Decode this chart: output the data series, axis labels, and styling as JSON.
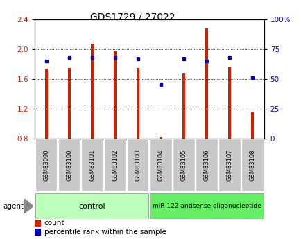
{
  "title": "GDS1729 / 27022",
  "categories": [
    "GSM83090",
    "GSM83100",
    "GSM83101",
    "GSM83102",
    "GSM83103",
    "GSM83104",
    "GSM83105",
    "GSM83106",
    "GSM83107",
    "GSM83108"
  ],
  "red_values": [
    1.74,
    1.75,
    2.07,
    1.97,
    1.75,
    0.82,
    1.67,
    2.28,
    1.77,
    1.15
  ],
  "blue_values": [
    65,
    68,
    68,
    68,
    67,
    45,
    67,
    65,
    68,
    51
  ],
  "bar_bottom": 0.8,
  "ylim_left": [
    0.8,
    2.4
  ],
  "ylim_right": [
    0,
    100
  ],
  "yticks_left": [
    0.8,
    1.2,
    1.6,
    2.0,
    2.4
  ],
  "yticks_right": [
    0,
    25,
    50,
    75,
    100
  ],
  "ytick_labels_right": [
    "0",
    "25",
    "50",
    "75",
    "100%"
  ],
  "red_color": "#cc2200",
  "blue_color": "#0000bb",
  "bar_bg_color": "#c8c8c8",
  "control_label": "control",
  "treatment_label": "miR-122 antisense oligonucleotide",
  "agent_label": "agent",
  "legend_count": "count",
  "legend_pct": "percentile rank within the sample",
  "control_bg": "#bbffbb",
  "treatment_bg": "#66ee66",
  "xlabel_bg": "#cccccc",
  "fig_bg": "#ffffff"
}
